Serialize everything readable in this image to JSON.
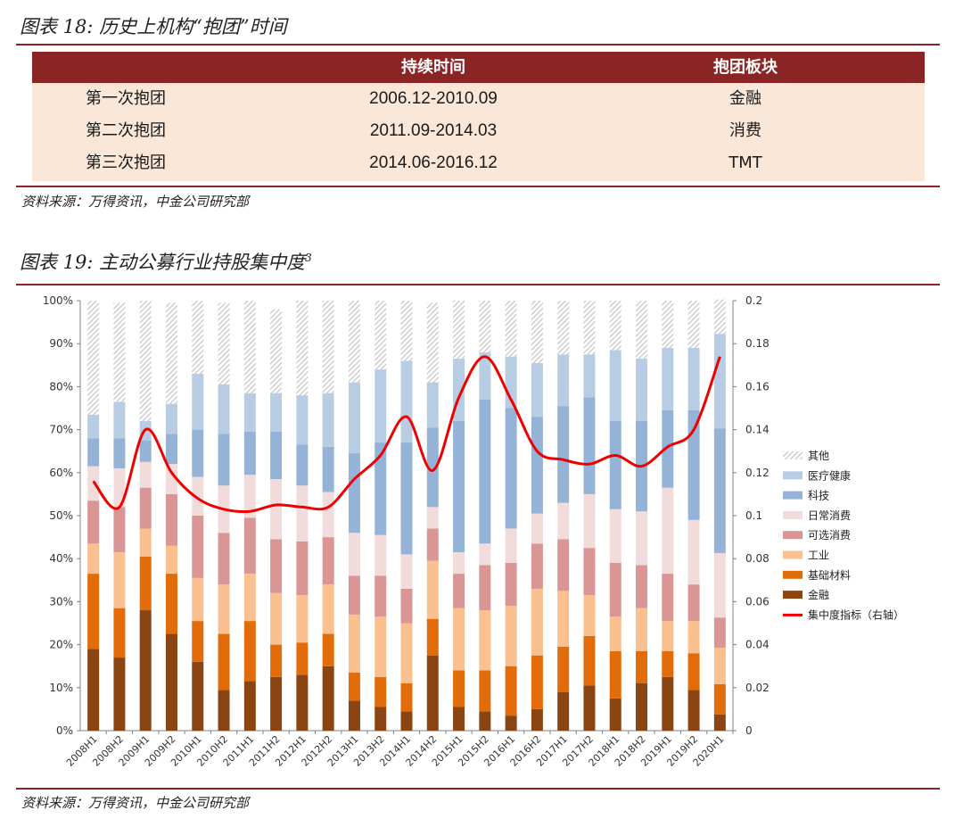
{
  "fig18": {
    "title": "图表 18: 历史上机构“抱团”时间",
    "headers": [
      "",
      "持续时间",
      "抱团板块"
    ],
    "rows": [
      {
        "name": "第一次抱团",
        "period": "2006.12-2010.09",
        "sector": "金融"
      },
      {
        "name": "第二次抱团",
        "period": "2011.09-2014.03",
        "sector": "消费"
      },
      {
        "name": "第三次抱团",
        "period": "2014.06-2016.12",
        "sector": "TMT"
      }
    ],
    "source": "资料来源：万得资讯，中金公司研究部"
  },
  "fig19": {
    "title": "图表 19: 主动公募行业持股集中度",
    "title_sup": "3",
    "source": "资料来源：万得资讯，中金公司研究部"
  },
  "chart_data": {
    "type": "bar",
    "stacked": true,
    "categories": [
      "2008H1",
      "2008H2",
      "2009H1",
      "2009H2",
      "2010H1",
      "2010H2",
      "2011H1",
      "2011H2",
      "2012H1",
      "2012H2",
      "2013H1",
      "2013H2",
      "2014H1",
      "2014H2",
      "2015H1",
      "2015H2",
      "2016H1",
      "2016H2",
      "2017H1",
      "2017H2",
      "2018H1",
      "2018H2",
      "2019H1",
      "2019H2",
      "2020H1"
    ],
    "ylim": [
      0,
      100
    ],
    "yticks": [
      "0%",
      "10%",
      "20%",
      "30%",
      "40%",
      "50%",
      "60%",
      "70%",
      "80%",
      "90%",
      "100%"
    ],
    "y2lim": [
      0,
      0.2
    ],
    "y2ticks": [
      "0",
      "0.02",
      "0.04",
      "0.06",
      "0.08",
      "0.1",
      "0.12",
      "0.14",
      "0.16",
      "0.18",
      "0.2"
    ],
    "legend_position": "right",
    "colors": {
      "金融": "#8b4513",
      "基础材料": "#e36c0a",
      "工业": "#fac090",
      "可选消费": "#d99694",
      "日常消费": "#f2dcdb",
      "科技": "#95b3d7",
      "医疗健康": "#b8cce4",
      "其他": "#bfbfbf",
      "集中度指标（右轴）": "#ee0000"
    },
    "series": [
      {
        "name": "金融",
        "values": [
          19,
          17,
          28,
          22.5,
          16,
          9.5,
          11.5,
          12.5,
          13,
          15,
          7,
          5.5,
          4.5,
          17.5,
          5.5,
          4.5,
          3.5,
          5,
          9,
          10.5,
          7.5,
          11,
          12.5,
          9.5,
          3.8
        ]
      },
      {
        "name": "基础材料",
        "values": [
          17.5,
          11.5,
          12.5,
          14,
          9.5,
          13,
          14,
          7.5,
          7.5,
          7.5,
          6.5,
          7,
          6.5,
          8.5,
          8.5,
          9.5,
          11.5,
          12.5,
          10.5,
          11.5,
          11,
          7.5,
          6,
          8.5,
          7
        ]
      },
      {
        "name": "工业",
        "values": [
          7,
          13,
          6.5,
          6.5,
          10,
          11.5,
          11,
          12,
          11,
          11.5,
          13.5,
          14,
          14,
          13.5,
          14.5,
          14,
          14,
          15.5,
          13,
          9.5,
          8,
          10,
          7,
          7.5,
          8.5
        ]
      },
      {
        "name": "可选消费",
        "values": [
          10,
          10.5,
          9.5,
          12,
          14.5,
          12,
          13,
          12.5,
          12.5,
          11,
          9,
          9.5,
          8,
          7.5,
          8,
          10.5,
          10,
          10.5,
          12,
          11,
          12.5,
          10,
          11,
          8.5,
          7
        ]
      },
      {
        "name": "日常消费",
        "values": [
          8,
          9,
          6,
          7,
          9,
          11,
          10,
          14,
          13,
          10.5,
          10,
          9.5,
          8,
          5,
          5,
          5,
          8,
          7,
          8.5,
          12.5,
          12.5,
          12.5,
          20,
          15,
          15
        ]
      },
      {
        "name": "科技",
        "values": [
          6.5,
          7,
          5,
          7,
          11,
          12,
          10,
          11,
          9.5,
          10.5,
          18.5,
          21.5,
          26,
          18.5,
          30.5,
          33.5,
          28,
          22.5,
          22.5,
          22.5,
          20.5,
          21,
          18,
          25.5,
          29
        ]
      },
      {
        "name": "医疗健康",
        "values": [
          5.5,
          8.5,
          4.5,
          7,
          13,
          11.5,
          9,
          9,
          11.5,
          12.5,
          16.5,
          17,
          19,
          10.5,
          14.5,
          11,
          12,
          12.5,
          12,
          10,
          16.5,
          14.5,
          14.5,
          14.5,
          22
        ]
      },
      {
        "name": "其他",
        "values": [
          26.5,
          23,
          28,
          23.5,
          17,
          19,
          21.5,
          19.5,
          22,
          21.5,
          19,
          16,
          14,
          18.5,
          13.5,
          12,
          13,
          14.5,
          12.5,
          12.5,
          11.5,
          13.5,
          11,
          11,
          8
        ]
      }
    ],
    "line": {
      "name": "集中度指标（右轴）",
      "axis": "right",
      "values": [
        0.116,
        0.104,
        0.14,
        0.12,
        0.108,
        0.103,
        0.102,
        0.105,
        0.104,
        0.104,
        0.117,
        0.128,
        0.146,
        0.121,
        0.155,
        0.174,
        0.154,
        0.13,
        0.126,
        0.124,
        0.128,
        0.123,
        0.132,
        0.14,
        0.174
      ]
    }
  }
}
